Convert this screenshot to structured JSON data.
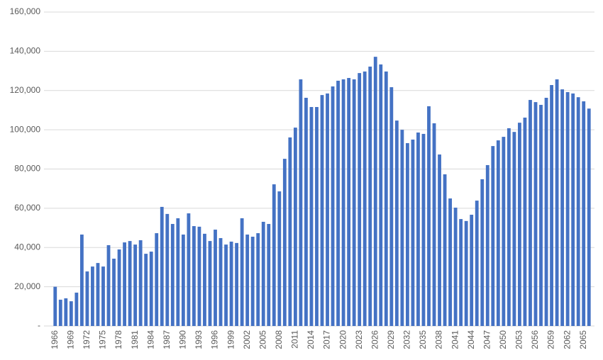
{
  "chart_data": {
    "type": "bar",
    "color": "#4472c4",
    "grid": true,
    "categories": [
      "1966",
      null,
      null,
      "1969",
      null,
      null,
      "1972",
      null,
      null,
      "1975",
      null,
      null,
      "1978",
      null,
      null,
      "1981",
      null,
      null,
      "1984",
      null,
      null,
      "1987",
      null,
      null,
      "1990",
      null,
      null,
      "1993",
      null,
      null,
      "1996",
      null,
      null,
      "1999",
      null,
      null,
      "2002",
      null,
      null,
      "2005",
      null,
      null,
      "2008",
      null,
      null,
      "2011",
      null,
      null,
      "2014",
      null,
      null,
      "2017",
      null,
      null,
      "2020",
      null,
      null,
      "2023",
      null,
      null,
      "2026",
      null,
      null,
      "2029",
      null,
      null,
      "2032",
      null,
      null,
      "2035",
      null,
      null,
      "2038",
      null,
      null,
      "2041",
      null,
      null,
      "2044",
      null,
      null,
      "2047",
      null,
      null,
      "2050",
      null,
      null,
      "2053",
      null,
      null,
      "2056",
      null,
      null,
      "2059",
      null,
      null,
      "2062",
      null,
      null,
      "2065",
      null
    ],
    "values": [
      20000,
      13400,
      14100,
      12600,
      17000,
      46600,
      27800,
      30300,
      32100,
      30300,
      41200,
      34300,
      39000,
      42600,
      43300,
      41500,
      43700,
      36800,
      37900,
      47300,
      60700,
      57100,
      52000,
      54900,
      46600,
      57400,
      50900,
      50600,
      47000,
      43300,
      49100,
      44800,
      41500,
      43000,
      42300,
      54900,
      46600,
      45500,
      47300,
      53100,
      52000,
      72200,
      68600,
      85200,
      96100,
      101100,
      125700,
      116300,
      111600,
      111600,
      117700,
      118500,
      122100,
      125000,
      125700,
      126400,
      125700,
      128900,
      129700,
      132200,
      137200,
      133300,
      129700,
      121700,
      104700,
      100000,
      93200,
      95000,
      98600,
      97900,
      112000,
      103300,
      87400,
      77300,
      65000,
      60300,
      54500,
      53500,
      56700,
      63900,
      74800,
      82000,
      91700,
      94600,
      96400,
      100800,
      98900,
      103600,
      106200,
      115200,
      114100,
      112700,
      116300,
      122800,
      125700,
      120600,
      119200,
      118500,
      116600,
      114500,
      110800
    ],
    "ylim": [
      0,
      160000
    ],
    "yticks": [
      {
        "value": 0,
        "label": "-"
      },
      {
        "value": 20000,
        "label": "20,000"
      },
      {
        "value": 40000,
        "label": "40,000"
      },
      {
        "value": 60000,
        "label": "60,000"
      },
      {
        "value": 80000,
        "label": "80,000"
      },
      {
        "value": 100000,
        "label": "100,000"
      },
      {
        "value": 120000,
        "label": "120,000"
      },
      {
        "value": 140000,
        "label": "140,000"
      },
      {
        "value": 160000,
        "label": "160,000"
      }
    ]
  }
}
